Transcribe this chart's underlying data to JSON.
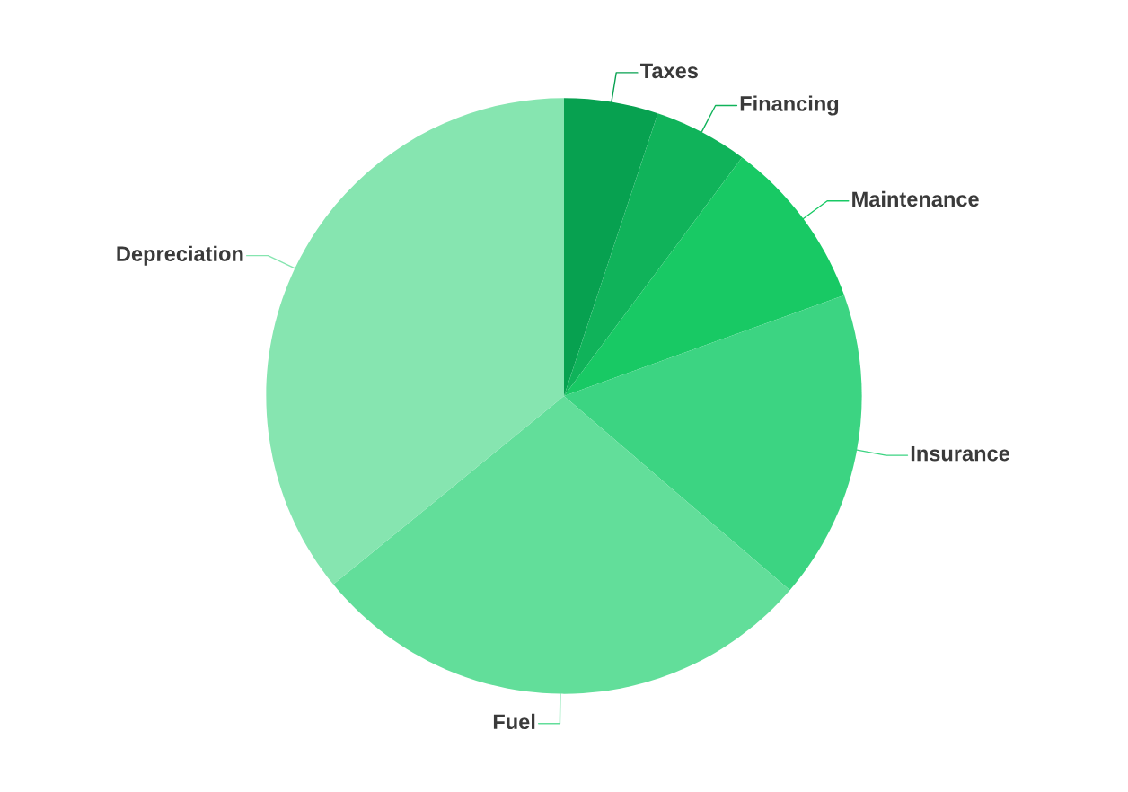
{
  "chart_data": {
    "type": "pie",
    "categories": [
      "Taxes",
      "Financing",
      "Maintenance",
      "Insurance",
      "Fuel",
      "Depreciation"
    ],
    "values": [
      5.1,
      5.1,
      9.3,
      16.8,
      27.8,
      35.9
    ],
    "colors": [
      "#07a150",
      "#10b35a",
      "#18c964",
      "#3cd482",
      "#62de9a",
      "#86e5b0"
    ],
    "legend": false
  }
}
